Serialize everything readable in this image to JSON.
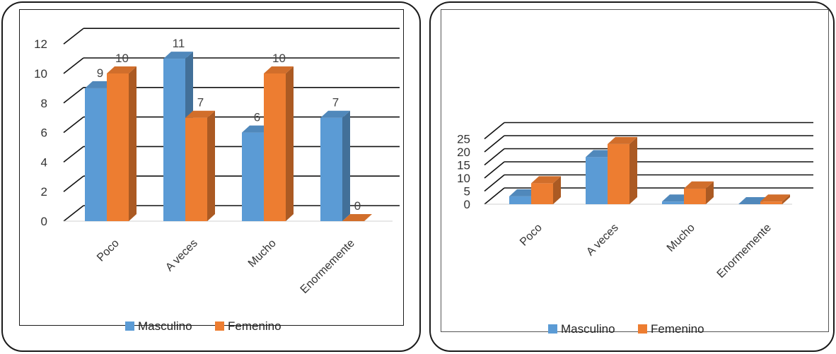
{
  "chart_data": [
    {
      "type": "bar",
      "categories": [
        "Poco",
        "A veces",
        "Mucho",
        "Enormemente"
      ],
      "series": [
        {
          "name": "Masculino",
          "values": [
            9,
            11,
            6,
            7
          ]
        },
        {
          "name": "Femenino",
          "values": [
            10,
            7,
            10,
            0
          ]
        }
      ],
      "y_ticks": [
        "0",
        "2",
        "4",
        "6",
        "8",
        "10",
        "12"
      ],
      "ylim": [
        0,
        12
      ],
      "data_labels": true,
      "grid": true,
      "legend": "bottom",
      "title": "",
      "xlabel": "",
      "ylabel": ""
    },
    {
      "type": "bar",
      "categories": [
        "Poco",
        "A veces",
        "Mucho",
        "Enormemente"
      ],
      "series": [
        {
          "name": "Masculino",
          "values": [
            3,
            18,
            1,
            0
          ]
        },
        {
          "name": "Femenino",
          "values": [
            8,
            23,
            6,
            1
          ]
        }
      ],
      "y_ticks": [
        "0",
        "5",
        "10",
        "15",
        "20",
        "25"
      ],
      "ylim": [
        0,
        25
      ],
      "data_labels": false,
      "grid": true,
      "legend": "bottom",
      "title": "",
      "xlabel": "",
      "ylabel": ""
    }
  ],
  "colors": {
    "masculino": "#5b9bd5",
    "femenino": "#ed7d31"
  }
}
